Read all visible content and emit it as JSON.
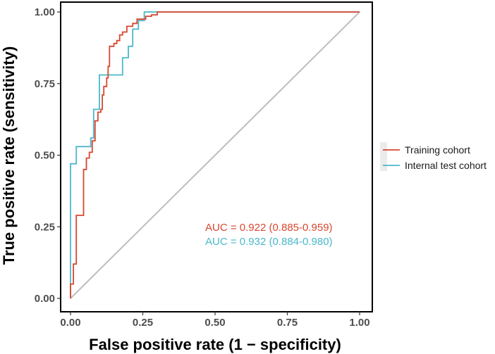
{
  "chart_data": {
    "type": "line",
    "title": "",
    "xlabel": "False positive rate (1 − specificity)",
    "ylabel": "True positive rate (sensitivity)",
    "xlim": [
      0,
      1
    ],
    "ylim": [
      0,
      1
    ],
    "x_ticks": [
      "0.00",
      "0.25",
      "0.50",
      "0.75",
      "1.00"
    ],
    "y_ticks": [
      "0.00",
      "0.25",
      "0.50",
      "0.75",
      "1.00"
    ],
    "grid": false,
    "legend_position": "right",
    "reference_line": {
      "x": [
        0,
        1
      ],
      "y": [
        0,
        1
      ],
      "color": "#bdbdbd"
    },
    "series": [
      {
        "name": "Training cohort",
        "color": "#d8472f",
        "auc_label": "AUC = 0.922 (0.885-0.959)",
        "points": [
          [
            0,
            0
          ],
          [
            0,
            0.05
          ],
          [
            0.01,
            0.05
          ],
          [
            0.01,
            0.12
          ],
          [
            0.02,
            0.12
          ],
          [
            0.02,
            0.29
          ],
          [
            0.045,
            0.29
          ],
          [
            0.045,
            0.45
          ],
          [
            0.055,
            0.45
          ],
          [
            0.055,
            0.49
          ],
          [
            0.065,
            0.49
          ],
          [
            0.065,
            0.51
          ],
          [
            0.075,
            0.51
          ],
          [
            0.075,
            0.55
          ],
          [
            0.085,
            0.55
          ],
          [
            0.085,
            0.62
          ],
          [
            0.095,
            0.62
          ],
          [
            0.095,
            0.65
          ],
          [
            0.105,
            0.65
          ],
          [
            0.105,
            0.66
          ],
          [
            0.11,
            0.66
          ],
          [
            0.11,
            0.71
          ],
          [
            0.115,
            0.71
          ],
          [
            0.115,
            0.74
          ],
          [
            0.125,
            0.74
          ],
          [
            0.125,
            0.77
          ],
          [
            0.13,
            0.77
          ],
          [
            0.13,
            0.81
          ],
          [
            0.135,
            0.81
          ],
          [
            0.135,
            0.88
          ],
          [
            0.15,
            0.88
          ],
          [
            0.15,
            0.89
          ],
          [
            0.16,
            0.89
          ],
          [
            0.16,
            0.9
          ],
          [
            0.17,
            0.9
          ],
          [
            0.17,
            0.92
          ],
          [
            0.18,
            0.92
          ],
          [
            0.18,
            0.93
          ],
          [
            0.195,
            0.93
          ],
          [
            0.195,
            0.95
          ],
          [
            0.215,
            0.95
          ],
          [
            0.215,
            0.96
          ],
          [
            0.23,
            0.96
          ],
          [
            0.23,
            0.975
          ],
          [
            0.26,
            0.975
          ],
          [
            0.26,
            0.985
          ],
          [
            0.28,
            0.985
          ],
          [
            0.28,
            0.99
          ],
          [
            0.3,
            0.99
          ],
          [
            0.3,
            1.0
          ],
          [
            1.0,
            1.0
          ]
        ]
      },
      {
        "name": "Internal test cohort",
        "color": "#4ab8cc",
        "auc_label": "AUC = 0.932 (0.884-0.980)",
        "points": [
          [
            0,
            0
          ],
          [
            0,
            0.47
          ],
          [
            0.02,
            0.47
          ],
          [
            0.02,
            0.53
          ],
          [
            0.07,
            0.53
          ],
          [
            0.07,
            0.56
          ],
          [
            0.08,
            0.56
          ],
          [
            0.08,
            0.66
          ],
          [
            0.1,
            0.66
          ],
          [
            0.1,
            0.78
          ],
          [
            0.18,
            0.78
          ],
          [
            0.18,
            0.84
          ],
          [
            0.2,
            0.84
          ],
          [
            0.2,
            0.88
          ],
          [
            0.215,
            0.88
          ],
          [
            0.215,
            0.94
          ],
          [
            0.235,
            0.94
          ],
          [
            0.235,
            0.97
          ],
          [
            0.255,
            0.97
          ],
          [
            0.255,
            1.0
          ],
          [
            1.0,
            1.0
          ]
        ]
      }
    ]
  }
}
